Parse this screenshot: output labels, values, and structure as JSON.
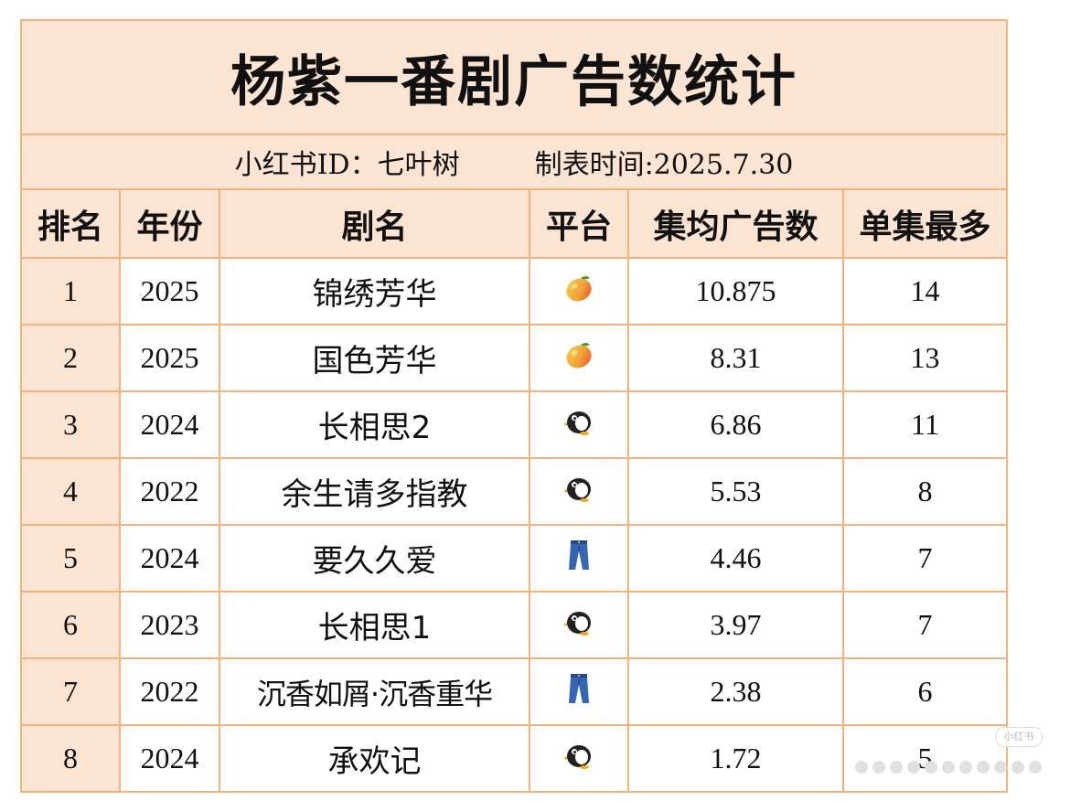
{
  "title": "杨紫一番剧广告数统计",
  "subtitle": {
    "author": "小红书ID：七叶树",
    "date": "制表时间:2025.7.30"
  },
  "columns": [
    "排名",
    "年份",
    "剧名",
    "平台",
    "集均广告数",
    "单集最多"
  ],
  "rows": [
    {
      "rank": "1",
      "year": "2025",
      "drama": "锦绣芳华",
      "platform": "mango-icon",
      "avg_ads": "10.875",
      "max_ads": "14"
    },
    {
      "rank": "2",
      "year": "2025",
      "drama": "国色芳华",
      "platform": "mango-icon",
      "avg_ads": "8.31",
      "max_ads": "13"
    },
    {
      "rank": "3",
      "year": "2024",
      "drama": "长相思2",
      "platform": "penguin-icon",
      "avg_ads": "6.86",
      "max_ads": "11"
    },
    {
      "rank": "4",
      "year": "2022",
      "drama": "余生请多指教",
      "platform": "penguin-icon",
      "avg_ads": "5.53",
      "max_ads": "8"
    },
    {
      "rank": "5",
      "year": "2024",
      "drama": "要久久爱",
      "platform": "jeans-icon",
      "avg_ads": "4.46",
      "max_ads": "7"
    },
    {
      "rank": "6",
      "year": "2023",
      "drama": "长相思1",
      "platform": "penguin-icon",
      "avg_ads": "3.97",
      "max_ads": "7"
    },
    {
      "rank": "7",
      "year": "2022",
      "drama": "沉香如屑·沉香重华",
      "platform": "jeans-icon",
      "avg_ads": "2.38",
      "max_ads": "6"
    },
    {
      "rank": "8",
      "year": "2024",
      "drama": "承欢记",
      "platform": "penguin-icon",
      "avg_ads": "1.72",
      "max_ads": "5"
    }
  ],
  "watermark": "小红书",
  "colors": {
    "header_fill": "#fbe4d2",
    "border": "#f2b27c"
  }
}
